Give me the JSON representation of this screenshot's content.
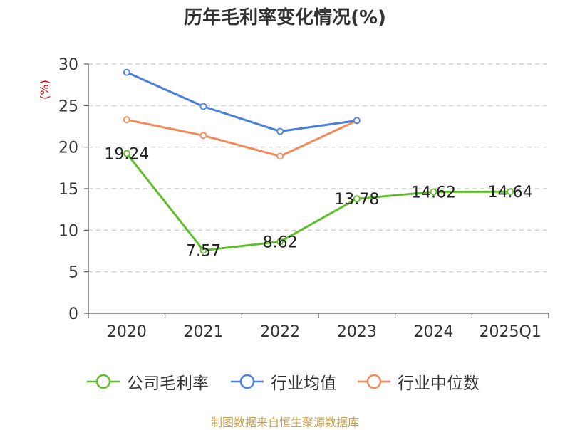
{
  "title": "历年毛利率变化情况(%)",
  "source": "制图数据来自恒生聚源数据库",
  "colors": {
    "company": "#5fbf2a",
    "industry_avg": "#4a7fdc",
    "industry_median": "#f28a5a",
    "ylabel": "#cc0000",
    "source": "#c8a050",
    "grid": "#c8c8c8"
  },
  "chart_data": {
    "type": "line",
    "title": "历年毛利率变化情况(%)",
    "ylabel": "(%)",
    "xlabel": "",
    "categories": [
      "2020",
      "2021",
      "2022",
      "2023",
      "2024",
      "2025Q1"
    ],
    "ylim": [
      0,
      30
    ],
    "yticks": [
      0,
      5,
      10,
      15,
      20,
      25,
      30
    ],
    "grid": true,
    "legend": "bottom",
    "series": [
      {
        "name": "公司毛利率",
        "key": "company",
        "values": [
          19.24,
          7.57,
          8.62,
          13.78,
          14.62,
          14.64
        ],
        "labels": [
          "19.24",
          "7.57",
          "8.62",
          "13.78",
          "14.62",
          "14.64"
        ]
      },
      {
        "name": "行业均值",
        "key": "industry_avg",
        "values": [
          29.0,
          24.9,
          21.9,
          23.2,
          null,
          null
        ]
      },
      {
        "name": "行业中位数",
        "key": "industry_median",
        "values": [
          23.3,
          21.4,
          18.9,
          23.2,
          null,
          null
        ]
      }
    ]
  }
}
